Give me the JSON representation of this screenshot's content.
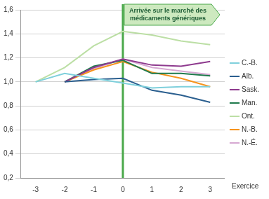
{
  "chart_data": {
    "type": "line",
    "x_label": "Exercice",
    "categories": [
      -3,
      -2,
      -1,
      0,
      1,
      2,
      3
    ],
    "ylim": [
      0.2,
      1.6
    ],
    "yticks": [
      {
        "value": 0.2,
        "label": "0,2"
      },
      {
        "value": 0.4,
        "label": "0,4"
      },
      {
        "value": 0.6,
        "label": "0,6"
      },
      {
        "value": 0.8,
        "label": "0,8"
      },
      {
        "value": 1.0,
        "label": "1,0"
      },
      {
        "value": 1.2,
        "label": "1,2"
      },
      {
        "value": 1.4,
        "label": "1,4"
      },
      {
        "value": 1.6,
        "label": "1,6"
      }
    ],
    "grid": true,
    "legend": "right",
    "annotations": [
      {
        "text": "Arrivée sur le marché des médicaments génériques",
        "x": 0,
        "color": "#4aa84a"
      }
    ],
    "series": [
      {
        "name": "C.-B.",
        "color": "#7fd0dc",
        "values": [
          1.0,
          1.07,
          1.03,
          0.99,
          0.95,
          0.96,
          0.96
        ]
      },
      {
        "name": "Alb.",
        "color": "#2b5f8f",
        "values": [
          null,
          1.0,
          1.02,
          1.03,
          0.93,
          0.89,
          0.83
        ]
      },
      {
        "name": "Sask.",
        "color": "#8e3a8e",
        "values": [
          null,
          1.0,
          1.12,
          1.19,
          1.14,
          1.13,
          1.17
        ]
      },
      {
        "name": "Man.",
        "color": "#1f7a4c",
        "values": [
          null,
          1.0,
          1.13,
          1.18,
          1.07,
          1.07,
          1.05
        ]
      },
      {
        "name": "Ont.",
        "color": "#bcdfa5",
        "values": [
          1.0,
          1.12,
          1.3,
          1.42,
          1.39,
          1.34,
          1.31
        ]
      },
      {
        "name": "N.-B.",
        "color": "#f7941d",
        "values": [
          null,
          1.0,
          1.1,
          1.17,
          1.08,
          1.03,
          0.96
        ]
      },
      {
        "name": "N.-É.",
        "color": "#d6a8d2",
        "values": [
          null,
          1.0,
          1.11,
          1.19,
          1.12,
          1.09,
          1.06
        ]
      }
    ]
  }
}
